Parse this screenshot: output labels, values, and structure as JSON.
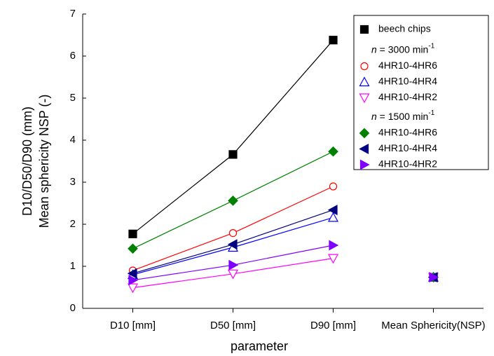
{
  "chart_data": {
    "type": "line",
    "x_label": "parameter",
    "y_label": [
      "D10/D50/D90 (mm)",
      "Mean sphericity NSP (-)"
    ],
    "categories": [
      "D10 [mm]",
      "D50 [mm]",
      "D90 [mm]",
      "Mean Sphericity(NSP)"
    ],
    "ylim": [
      0,
      7
    ],
    "yticks": [
      0,
      1,
      2,
      3,
      4,
      5,
      6,
      7
    ],
    "legend_groups": [
      {
        "italic": "n",
        "text": " = 3000 min",
        "sup": "-1"
      },
      {
        "italic": "n",
        "text": " = 1500 min",
        "sup": "-1"
      }
    ],
    "series": [
      {
        "name": "beech chips",
        "color": "#000000",
        "marker": "square",
        "filled": true,
        "values": [
          1.77,
          3.66,
          6.38,
          0.74
        ]
      },
      {
        "name": "4HR10-4HR6",
        "group": 0,
        "color": "#ff0000",
        "marker": "circle",
        "filled": false,
        "values": [
          0.9,
          1.79,
          2.9,
          0.74
        ]
      },
      {
        "name": "4HR10-4HR4",
        "group": 0,
        "color": "#0000ff",
        "marker": "triangle-up",
        "filled": false,
        "values": [
          0.8,
          1.45,
          2.16,
          0.74
        ]
      },
      {
        "name": "4HR10-4HR2",
        "group": 0,
        "color": "#ff00ff",
        "marker": "triangle-down",
        "filled": false,
        "values": [
          0.49,
          0.82,
          1.19,
          0.74
        ]
      },
      {
        "name": "4HR10-4HR6",
        "group": 1,
        "color": "#008000",
        "marker": "diamond",
        "filled": true,
        "values": [
          1.42,
          2.56,
          3.73,
          0.74
        ]
      },
      {
        "name": "4HR10-4HR4",
        "group": 1,
        "color": "#000080",
        "marker": "triangle-left",
        "filled": true,
        "values": [
          0.83,
          1.52,
          2.34,
          0.74
        ]
      },
      {
        "name": "4HR10-4HR2",
        "group": 1,
        "color": "#8000ff",
        "marker": "triangle-right",
        "filled": true,
        "values": [
          0.67,
          1.03,
          1.5,
          0.74
        ]
      }
    ]
  }
}
